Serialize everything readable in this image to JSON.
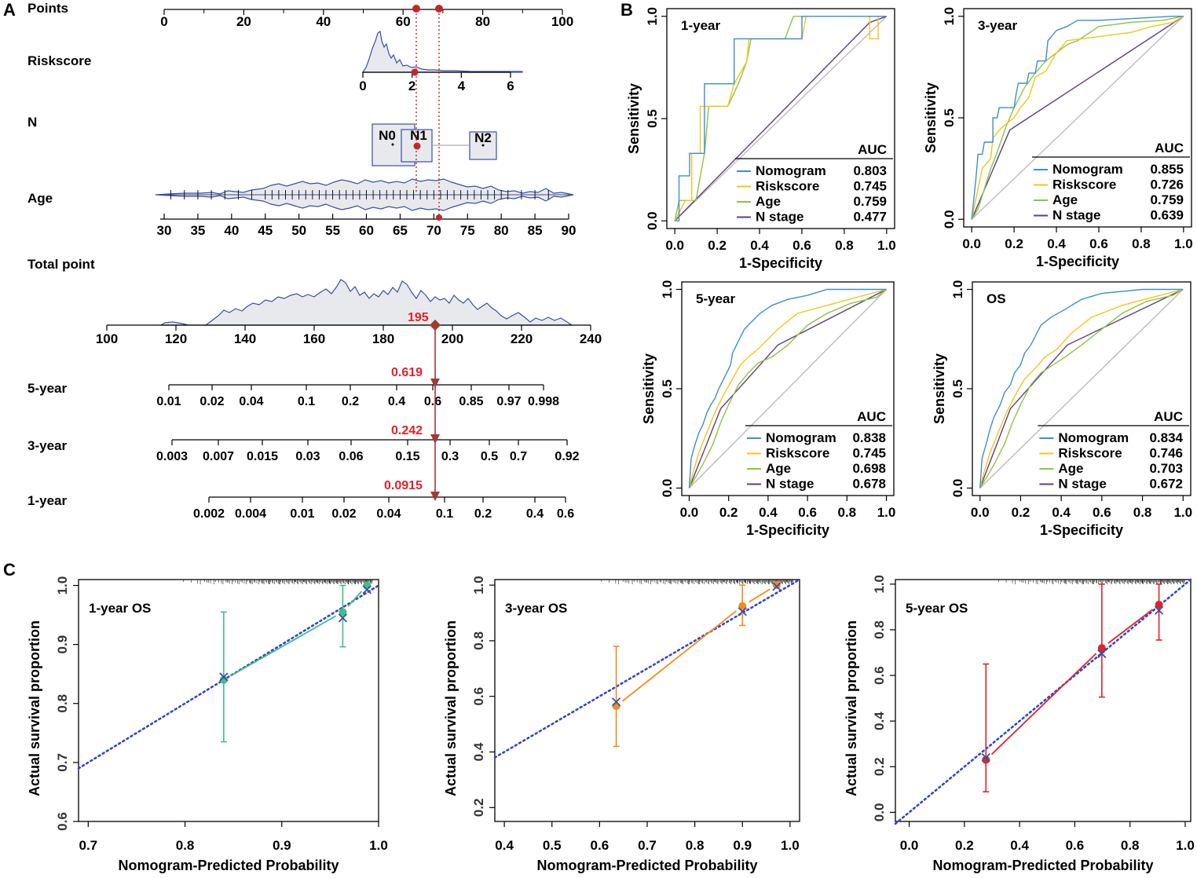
{
  "panel_labels": [
    "A",
    "B",
    "C"
  ],
  "chart_data": [
    {
      "type": "nomogram",
      "panel": "A",
      "variables": [
        {
          "label": "Points",
          "ticks": [
            0,
            20,
            40,
            60,
            80,
            100
          ]
        },
        {
          "label": "Riskscore",
          "ticks": [
            0,
            2,
            4,
            6
          ]
        },
        {
          "label": "N",
          "levels": [
            "N0",
            "N1",
            "N2"
          ]
        },
        {
          "label": "Age",
          "ticks": [
            30,
            35,
            40,
            45,
            50,
            55,
            60,
            65,
            70,
            75,
            80,
            85,
            90
          ]
        },
        {
          "label": "Total point",
          "ticks": [
            100,
            120,
            140,
            160,
            180,
            200,
            220,
            240
          ]
        },
        {
          "label": "5-year",
          "ticks": [
            "0.01",
            "0.02",
            "0.04",
            "0.1",
            "0.2",
            "0.4",
            "0.6",
            "0.85",
            "0.97",
            "0.998"
          ]
        },
        {
          "label": "3-year",
          "ticks": [
            "0.003",
            "0.007",
            "0.015",
            "0.03",
            "0.06",
            "0.15",
            "0.3",
            "0.5",
            "0.7",
            "0.92"
          ]
        },
        {
          "label": "1-year",
          "ticks": [
            "0.002",
            "0.004",
            "0.01",
            "0.02",
            "0.04",
            "0.1",
            "0.2",
            "0.4",
            "0.6"
          ]
        }
      ],
      "highlight": {
        "total_point": "195",
        "five_year": "0.619",
        "three_year": "0.242",
        "one_year": "0.0915"
      },
      "colors": {
        "outline": "#3b4ea8",
        "fill": "#e8e9ec",
        "marker": "#c1272d",
        "highlight_text": "#e0232a"
      }
    },
    {
      "type": "roc",
      "panel": "B",
      "plots": [
        {
          "title": "1-year",
          "auc": [
            "0.803",
            "0.745",
            "0.759",
            "0.477"
          ]
        },
        {
          "title": "3-year",
          "auc": [
            "0.855",
            "0.726",
            "0.759",
            "0.639"
          ]
        },
        {
          "title": "5-year",
          "auc": [
            "0.838",
            "0.745",
            "0.698",
            "0.678"
          ]
        },
        {
          "title": "OS",
          "auc": [
            "0.834",
            "0.746",
            "0.703",
            "0.672"
          ]
        }
      ],
      "legend_header": "AUC",
      "legend_labels": [
        "Nomogram",
        "Riskscore",
        "Age",
        "N stage"
      ],
      "xlabel": "1-Specificity",
      "ylabel": "Sensitivity",
      "xticks": [
        "0.0",
        "0.2",
        "0.4",
        "0.6",
        "0.8",
        "1.0"
      ],
      "yticks": [
        "0.0",
        "0.5",
        "1.0"
      ],
      "series_colors": [
        "#3c8ed4",
        "#f5c518",
        "#8cc63f",
        "#5e3c8c"
      ],
      "diagonal_color": "#b8b8b8"
    },
    {
      "type": "calibration",
      "panel": "C",
      "xlabel": "Nomogram-Predicted Probability",
      "ylabel": "Actual survival proportion",
      "plots": [
        {
          "title": "1-year OS",
          "color": "#3fbf8a",
          "xlim": [
            0.69,
            1.0
          ],
          "ylim": [
            0.6,
            1.01
          ],
          "xticks": [
            "0.7",
            "0.8",
            "0.9",
            "1.0"
          ],
          "yticks": [
            "0.6",
            "0.7",
            "0.8",
            "0.9",
            "1.0"
          ],
          "points": [
            {
              "x": 0.84,
              "observed": 0.84,
              "lower": 0.735,
              "upper": 0.955,
              "ideal": 0.845
            },
            {
              "x": 0.963,
              "observed": 0.955,
              "lower": 0.896,
              "upper": 1.0,
              "ideal": 0.945
            },
            {
              "x": 0.988,
              "observed": 1.0,
              "lower": 1.0,
              "upper": 1.0,
              "ideal": 0.993
            }
          ]
        },
        {
          "title": "3-year OS",
          "color": "#f28c1a",
          "xlim": [
            0.38,
            1.02
          ],
          "ylim": [
            0.15,
            1.02
          ],
          "xticks": [
            "0.4",
            "0.5",
            "0.6",
            "0.7",
            "0.8",
            "0.9",
            "1.0"
          ],
          "yticks": [
            "0.2",
            "0.4",
            "0.6",
            "0.8",
            "1.0"
          ],
          "points": [
            {
              "x": 0.635,
              "observed": 0.565,
              "lower": 0.42,
              "upper": 0.78,
              "ideal": 0.58
            },
            {
              "x": 0.9,
              "observed": 0.925,
              "lower": 0.855,
              "upper": 1.0,
              "ideal": 0.905
            },
            {
              "x": 0.972,
              "observed": 1.0,
              "lower": 1.0,
              "upper": 1.0,
              "ideal": 0.995
            }
          ]
        },
        {
          "title": "5-year OS",
          "color": "#e0232a",
          "xlim": [
            -0.05,
            1.02
          ],
          "ylim": [
            -0.04,
            1.02
          ],
          "xticks": [
            "0.0",
            "0.2",
            "0.4",
            "0.6",
            "0.8",
            "1.0"
          ],
          "yticks": [
            "0.0",
            "0.2",
            "0.4",
            "0.6",
            "0.8",
            "1.0"
          ],
          "points": [
            {
              "x": 0.278,
              "observed": 0.23,
              "lower": 0.09,
              "upper": 0.65,
              "ideal": 0.24
            },
            {
              "x": 0.698,
              "observed": 0.72,
              "lower": 0.505,
              "upper": 1.0,
              "ideal": 0.695
            },
            {
              "x": 0.905,
              "observed": 0.91,
              "lower": 0.755,
              "upper": 1.0,
              "ideal": 0.885
            }
          ]
        }
      ],
      "ideal_line_color": "#3346c9",
      "marker_x_color": "#3b4ea8"
    }
  ]
}
